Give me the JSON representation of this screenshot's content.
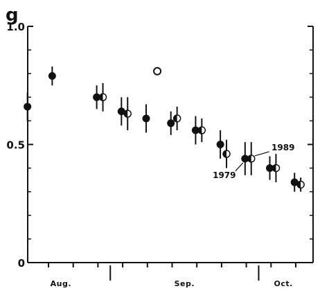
{
  "chart_data": {
    "type": "scatter",
    "title": "",
    "ylabel": "g",
    "xlabel": "",
    "ylim": [
      0,
      1.0
    ],
    "y_ticks": [
      {
        "value": 0,
        "label": "0"
      },
      {
        "value": 0.5,
        "label": "0.5"
      },
      {
        "value": 1.0,
        "label": "1.0"
      }
    ],
    "x_ticks": [
      1,
      2,
      3,
      4,
      5,
      6,
      7,
      8,
      9,
      10,
      11
    ],
    "x_separators": [
      3.5,
      9.5
    ],
    "months": [
      {
        "label": "Aug.",
        "center": 1.5
      },
      {
        "label": "Sep.",
        "center": 6.5
      },
      {
        "label": "Oct.",
        "center": 10.5
      }
    ],
    "grid": false,
    "series": [
      {
        "name": "1979",
        "marker": "filled-circle",
        "color": "#111111",
        "points": [
          {
            "x": 0.15,
            "y": 0.66,
            "err": 0.06
          },
          {
            "x": 1.15,
            "y": 0.79,
            "err": 0.04
          },
          {
            "x": 2.95,
            "y": 0.7,
            "err": 0.05
          },
          {
            "x": 3.95,
            "y": 0.64,
            "err": 0.06
          },
          {
            "x": 4.95,
            "y": 0.61,
            "err": 0.06
          },
          {
            "x": 5.95,
            "y": 0.59,
            "err": 0.05
          },
          {
            "x": 6.95,
            "y": 0.56,
            "err": 0.06
          },
          {
            "x": 7.95,
            "y": 0.5,
            "err": 0.06
          },
          {
            "x": 8.95,
            "y": 0.44,
            "err": 0.07
          },
          {
            "x": 9.95,
            "y": 0.4,
            "err": 0.05
          },
          {
            "x": 10.95,
            "y": 0.34,
            "err": 0.04
          }
        ]
      },
      {
        "name": "1989",
        "marker": "half-open-circle",
        "color": "#111111",
        "points": [
          {
            "x": 3.2,
            "y": 0.7,
            "err": 0.06
          },
          {
            "x": 4.2,
            "y": 0.63,
            "err": 0.07
          },
          {
            "x": 5.4,
            "y": 0.81,
            "err": 0
          },
          {
            "x": 6.2,
            "y": 0.61,
            "err": 0.05
          },
          {
            "x": 7.2,
            "y": 0.56,
            "err": 0.05
          },
          {
            "x": 8.2,
            "y": 0.46,
            "err": 0.06
          },
          {
            "x": 9.2,
            "y": 0.44,
            "err": 0.07
          },
          {
            "x": 10.2,
            "y": 0.4,
            "err": 0.06
          },
          {
            "x": 11.2,
            "y": 0.33,
            "err": 0.03
          }
        ]
      }
    ],
    "annotations": [
      {
        "text": "1989",
        "series": "1989",
        "point_index": 6
      },
      {
        "text": "1979",
        "series": "1979",
        "point_index": 8
      }
    ]
  }
}
